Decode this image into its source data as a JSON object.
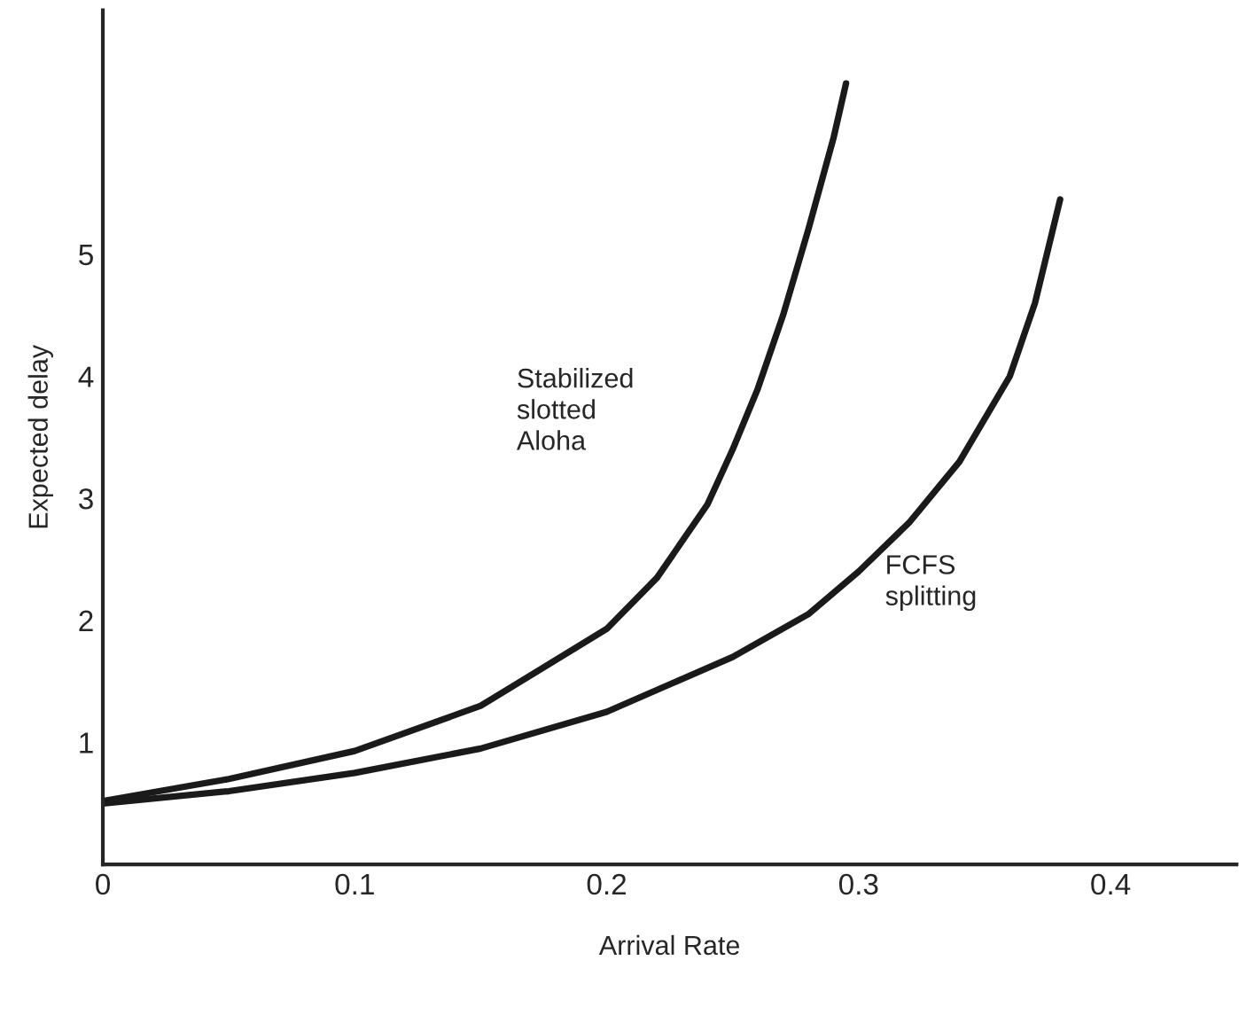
{
  "chart_data": {
    "type": "line",
    "xlabel": "Arrival Rate",
    "ylabel": "Expected delay",
    "xlim": [
      0,
      0.45
    ],
    "ylim": [
      0,
      7
    ],
    "xticks": [
      0,
      0.1,
      0.2,
      0.3,
      0.4
    ],
    "yticks": [
      1,
      2,
      3,
      4,
      5
    ],
    "grid": false,
    "legend": false,
    "marker": "none",
    "line_style": "solid",
    "series": [
      {
        "color": "#1a1a1a",
        "x": [
          0,
          0.05,
          0.1,
          0.15,
          0.2,
          0.22,
          0.24,
          0.25,
          0.26,
          0.27,
          0.28,
          0.29,
          0.295
        ],
        "values": [
          0.52,
          0.7,
          0.93,
          1.3,
          1.93,
          2.35,
          2.95,
          3.4,
          3.9,
          4.5,
          5.2,
          5.95,
          6.4
        ]
      },
      {
        "color": "#1a1a1a",
        "x": [
          0,
          0.05,
          0.1,
          0.15,
          0.2,
          0.25,
          0.28,
          0.3,
          0.32,
          0.34,
          0.36,
          0.37,
          0.38
        ],
        "values": [
          0.5,
          0.6,
          0.75,
          0.95,
          1.25,
          1.7,
          2.05,
          2.4,
          2.8,
          3.3,
          4.0,
          4.6,
          5.45
        ]
      }
    ],
    "annotations": [
      "Stabilized\nslotted\nAloha",
      "FCFS\nsplitting"
    ]
  }
}
